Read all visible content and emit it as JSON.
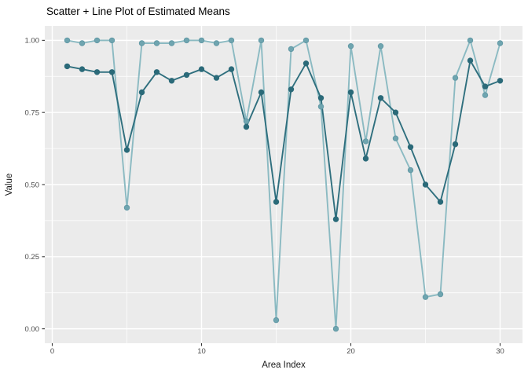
{
  "figure": {
    "background": "#FFFFFF",
    "panel_background": "#EBEBEB",
    "grid_color": "#FFFFFF",
    "tick_color": "#333333",
    "tick_label_color": "#4D4D4D",
    "axis_title_color": "#1A1A1A",
    "title_color": "#000000"
  },
  "chart_data": {
    "type": "line",
    "subtype": "scatter+line",
    "title": "Scatter + Line Plot of Estimated Means",
    "xlabel": "Area Index",
    "ylabel": "Value",
    "legend": "none",
    "grid": true,
    "xlim": [
      -0.5,
      31.5
    ],
    "ylim": [
      -0.05,
      1.05
    ],
    "x": [
      1,
      2,
      3,
      4,
      5,
      6,
      7,
      8,
      9,
      10,
      11,
      12,
      13,
      14,
      15,
      16,
      17,
      18,
      19,
      20,
      21,
      22,
      23,
      24,
      25,
      26,
      27,
      28,
      29,
      30
    ],
    "series": [
      {
        "name": "light_teal_series",
        "line_color": "#8BBAC2",
        "point_color": "#6FA5B0",
        "point_stroke": "#639AA6",
        "values": [
          1.0,
          0.99,
          1.0,
          1.0,
          0.42,
          0.99,
          0.99,
          0.99,
          1.0,
          1.0,
          0.99,
          1.0,
          0.72,
          1.0,
          0.03,
          0.97,
          1.0,
          0.77,
          0.0,
          0.98,
          0.65,
          0.98,
          0.66,
          0.55,
          0.11,
          0.12,
          0.87,
          1.0,
          0.81,
          0.99
        ]
      },
      {
        "name": "dark_teal_series",
        "line_color": "#2F6F7E",
        "point_color": "#2B6A79",
        "point_stroke": "#2B6A79",
        "values": [
          0.91,
          0.9,
          0.89,
          0.89,
          0.62,
          0.82,
          0.89,
          0.86,
          0.88,
          0.9,
          0.87,
          0.9,
          0.7,
          0.82,
          0.44,
          0.83,
          0.92,
          0.8,
          0.38,
          0.82,
          0.59,
          0.8,
          0.75,
          0.63,
          0.5,
          0.44,
          0.64,
          0.93,
          0.84,
          0.86
        ]
      }
    ],
    "x_ticks": {
      "values": [
        0,
        10,
        20,
        30
      ],
      "labels": [
        "0",
        "10",
        "20",
        "30"
      ]
    },
    "y_ticks": {
      "values": [
        0,
        0.25,
        0.5,
        0.75,
        1.0
      ],
      "labels": [
        "0.00",
        "0.25",
        "0.50",
        "0.75",
        "1.00"
      ]
    },
    "x_minor": [
      5,
      15,
      25
    ],
    "y_minor": [
      0.125,
      0.375,
      0.625,
      0.875
    ]
  }
}
